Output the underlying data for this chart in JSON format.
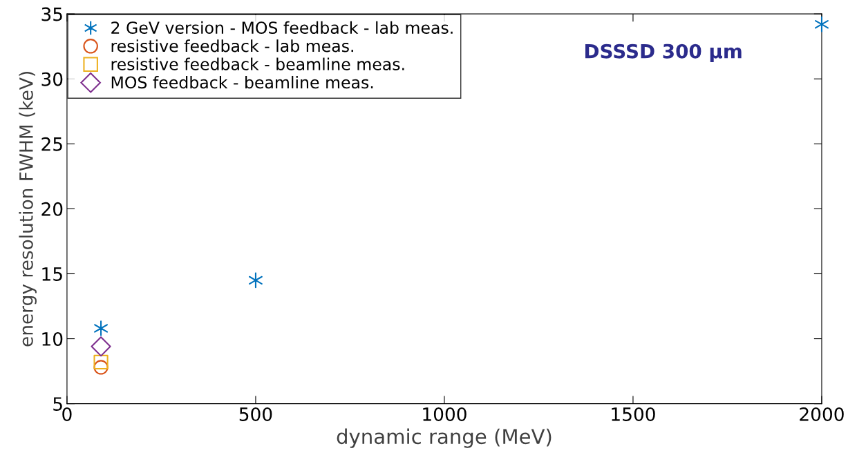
{
  "chart_data": {
    "type": "scatter",
    "xlabel": "dynamic range (MeV)",
    "ylabel": "energy resolution FWHM (keV)",
    "xlim": [
      0,
      2000
    ],
    "xticks": [
      0,
      500,
      1000,
      1500,
      2000
    ],
    "ylim": [
      5,
      35
    ],
    "yticks": [
      5,
      10,
      15,
      20,
      25,
      30,
      35
    ],
    "grid": false,
    "legend": "top left",
    "series": [
      {
        "name": "2 GeV version - MOS feedback - lab meas.",
        "color": "#0072bd",
        "marker": "cross",
        "x": [
          90,
          500,
          2000
        ],
        "values": [
          10.8,
          14.5,
          34.2
        ]
      },
      {
        "name": "resistive feedback - lab meas.",
        "color": "#d95319",
        "marker": "circle",
        "x": [
          90
        ],
        "values": [
          7.8
        ]
      },
      {
        "name": "resistive feedback - beamline meas.",
        "color": "#edb120",
        "marker": "square",
        "x": [
          90
        ],
        "values": [
          8.2
        ]
      },
      {
        "name": "MOS feedback - beamline meas.",
        "color": "#7e2f8e",
        "marker": "diamond",
        "x": [
          90
        ],
        "values": [
          9.4
        ]
      }
    ],
    "annotations": [
      "DSSSD 300 μm"
    ]
  }
}
